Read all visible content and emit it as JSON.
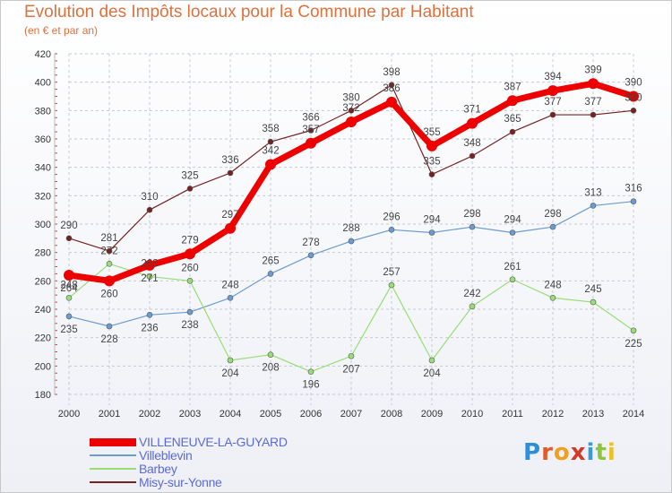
{
  "header": {
    "title": "Evolution des Impôts locaux pour la Commune par Habitant",
    "subtitle": "(en € et par an)"
  },
  "logo": {
    "text": "Proxiti",
    "letter_colors": [
      "#2e8fd8",
      "#e05a2b",
      "#f0a020",
      "#d23a2a",
      "#3a9bd8",
      "#8cc63f",
      "#f0c020"
    ]
  },
  "chart_data": {
    "type": "line",
    "title": "Evolution des Impôts locaux pour la Commune par Habitant",
    "subtitle": "(en € et par an)",
    "xlabel": "",
    "ylabel": "",
    "x": [
      "2000",
      "2001",
      "2002",
      "2003",
      "2004",
      "2005",
      "2006",
      "2007",
      "2008",
      "2009",
      "2010",
      "2011",
      "2012",
      "2013",
      "2014"
    ],
    "ylim": [
      180,
      420
    ],
    "yticks": [
      "180",
      "200",
      "220",
      "240",
      "260",
      "280",
      "300",
      "320",
      "340",
      "360",
      "380",
      "400",
      "420"
    ],
    "grid": true,
    "legend_position": "bottom-left",
    "series": [
      {
        "name": "VILLENEUVE-LA-GUYARD",
        "color": "#ee0000",
        "values": [
          264,
          260,
          271,
          279,
          297,
          342,
          357,
          372,
          386,
          355,
          371,
          387,
          394,
          399,
          390
        ],
        "labels": [
          "264",
          "260",
          "271",
          "279",
          "297",
          "342",
          "357",
          "372",
          "386",
          "355",
          "371",
          "387",
          "394",
          "399",
          "390"
        ]
      },
      {
        "name": "Villeblevin",
        "color": "#6b9ccf",
        "values": [
          235,
          228,
          236,
          238,
          248,
          265,
          278,
          288,
          296,
          294,
          298,
          294,
          298,
          313,
          316
        ],
        "labels": [
          "235",
          "228",
          "236",
          "238",
          "248",
          "265",
          "278",
          "288",
          "296",
          "294",
          "298",
          "294",
          "298",
          "313",
          "316"
        ]
      },
      {
        "name": "Barbey",
        "color": "#99dd77",
        "values": [
          248,
          272,
          263,
          260,
          204,
          208,
          196,
          207,
          257,
          204,
          242,
          261,
          248,
          245,
          225
        ],
        "labels": [
          "248",
          "272",
          "263",
          "260",
          "204",
          "208",
          "196",
          "207",
          "257",
          "204",
          "242",
          "261",
          "248",
          "245",
          "225"
        ]
      },
      {
        "name": "Misy-sur-Yonne",
        "color": "#772222",
        "values": [
          290,
          281,
          310,
          325,
          336,
          358,
          366,
          380,
          398,
          335,
          348,
          365,
          377,
          377,
          380
        ],
        "labels": [
          "290",
          "281",
          "310",
          "325",
          "336",
          "358",
          "366",
          "380",
          "398",
          "335",
          "348",
          "365",
          "377",
          "377",
          "380"
        ]
      }
    ]
  }
}
